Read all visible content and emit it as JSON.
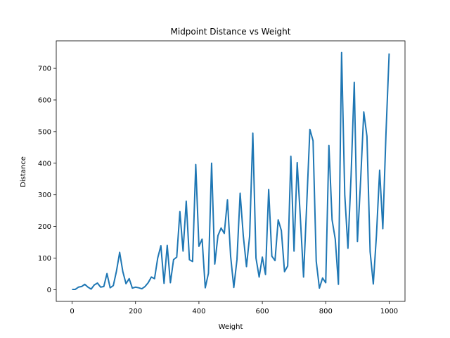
{
  "chart_data": {
    "type": "line",
    "title": "Midpoint Distance vs Weight",
    "xlabel": "Weight",
    "ylabel": "Distance",
    "xlim": [
      -50,
      1050
    ],
    "ylim": [
      -37,
      787
    ],
    "xticks": [
      0,
      200,
      400,
      600,
      800,
      1000
    ],
    "yticks": [
      0,
      100,
      200,
      300,
      400,
      500,
      600,
      700
    ],
    "grid": false,
    "series": [
      {
        "color": "#1f77b4",
        "x": [
          0,
          10,
          20,
          30,
          40,
          50,
          60,
          70,
          80,
          90,
          100,
          110,
          120,
          130,
          140,
          150,
          160,
          170,
          180,
          190,
          200,
          210,
          220,
          230,
          240,
          250,
          260,
          270,
          280,
          290,
          300,
          310,
          320,
          330,
          340,
          350,
          360,
          370,
          380,
          390,
          400,
          410,
          420,
          430,
          440,
          450,
          460,
          470,
          480,
          490,
          500,
          510,
          520,
          530,
          540,
          550,
          560,
          570,
          580,
          590,
          600,
          610,
          620,
          630,
          640,
          650,
          660,
          670,
          680,
          690,
          700,
          710,
          720,
          730,
          740,
          750,
          760,
          770,
          780,
          790,
          800,
          810,
          820,
          830,
          840,
          850,
          860,
          870,
          880,
          890,
          900,
          910,
          920,
          930,
          940,
          950,
          960,
          970,
          980,
          990,
          1000
        ],
        "y": [
          1,
          1,
          8,
          10,
          17,
          8,
          2,
          15,
          21,
          8,
          10,
          51,
          6,
          13,
          59,
          118,
          57,
          19,
          35,
          5,
          8,
          6,
          3,
          10,
          22,
          40,
          35,
          100,
          139,
          20,
          140,
          22,
          95,
          103,
          247,
          122,
          280,
          95,
          89,
          396,
          137,
          160,
          6,
          52,
          400,
          81,
          171,
          195,
          178,
          284,
          106,
          7,
          95,
          305,
          170,
          73,
          170,
          495,
          100,
          40,
          103,
          48,
          317,
          106,
          92,
          221,
          187,
          57,
          75,
          422,
          122,
          402,
          226,
          40,
          270,
          507,
          471,
          90,
          5,
          37,
          22,
          456,
          221,
          160,
          17,
          750,
          300,
          131,
          362,
          656,
          152,
          345,
          562,
          485,
          120,
          18,
          173,
          378,
          193,
          494,
          747
        ]
      }
    ]
  }
}
